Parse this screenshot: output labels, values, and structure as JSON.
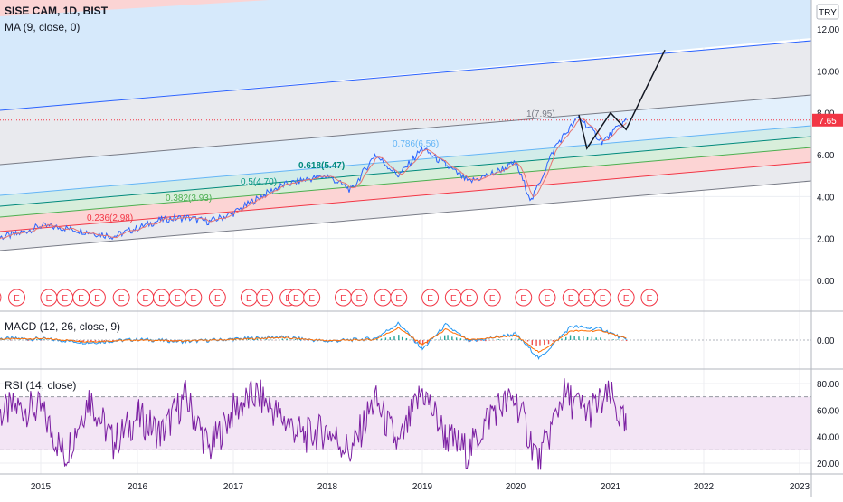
{
  "header": {
    "title": "SISE CAM, 1D, BIST",
    "indicator": "MA (9, close, 0)",
    "currency": "TRY",
    "last_price": "7.65"
  },
  "macd": {
    "title": "MACD (12, 26, close, 9)"
  },
  "rsi": {
    "title": "RSI (14, close)"
  },
  "chart_data": [
    {
      "type": "line",
      "title": "SISE CAM, 1D, BIST",
      "x": [
        "2014-07",
        "2014-10",
        "2015-01",
        "2015-04",
        "2015-07",
        "2015-10",
        "2016-01",
        "2016-04",
        "2016-07",
        "2016-10",
        "2017-01",
        "2017-04",
        "2017-07",
        "2017-10",
        "2018-01",
        "2018-04",
        "2018-07",
        "2018-10",
        "2019-01",
        "2019-04",
        "2019-07",
        "2019-10",
        "2020-01",
        "2020-03",
        "2020-06",
        "2020-09",
        "2020-12",
        "2021-03"
      ],
      "series": [
        {
          "name": "price",
          "values": [
            2.0,
            2.2,
            2.6,
            2.5,
            2.3,
            2.1,
            2.5,
            2.9,
            3.0,
            2.8,
            3.2,
            3.9,
            4.5,
            4.8,
            5.0,
            4.3,
            6.0,
            5.0,
            6.3,
            5.5,
            4.7,
            5.1,
            5.6,
            3.8,
            6.4,
            7.8,
            6.6,
            7.65
          ]
        }
      ],
      "ylim": [
        -1,
        13
      ],
      "yticks": [
        "12.00",
        "10.00",
        "8.00",
        "6.00",
        "4.00",
        "2.00",
        "0.00"
      ],
      "xticks": [
        "2015",
        "2016",
        "2017",
        "2018",
        "2019",
        "2020",
        "2021",
        "2022",
        "2023"
      ],
      "fib_levels": [
        {
          "label": "0.236(2.98)",
          "color": "#f23645"
        },
        {
          "label": "0.382(3.93)",
          "color": "#4caf50"
        },
        {
          "label": "0.5(4.70)",
          "color": "#089981"
        },
        {
          "label": "0.618(5.47)",
          "color": "#00897b"
        },
        {
          "label": "0.786(6.56)",
          "color": "#64b5f6"
        },
        {
          "label": "1(7.95)",
          "color": "#787b86"
        }
      ],
      "projection": [
        {
          "x": "2020-09",
          "y": 7.9
        },
        {
          "x": "2020-10",
          "y": 6.3
        },
        {
          "x": "2021-01",
          "y": 8.0
        },
        {
          "x": "2021-03",
          "y": 7.2
        },
        {
          "x": "2021-08",
          "y": 11.0
        }
      ],
      "earnings_markers": [
        "2014-07",
        "2014-10",
        "2015-02",
        "2015-04",
        "2015-06",
        "2015-08",
        "2015-11",
        "2016-02",
        "2016-04",
        "2016-06",
        "2016-08",
        "2016-11",
        "2017-03",
        "2017-05",
        "2017-08",
        "2017-09",
        "2017-11",
        "2018-03",
        "2018-05",
        "2018-08",
        "2018-10",
        "2019-02",
        "2019-05",
        "2019-07",
        "2019-10",
        "2020-02",
        "2020-05",
        "2020-08",
        "2020-10",
        "2020-12",
        "2021-03",
        "2021-06"
      ]
    },
    {
      "type": "line",
      "title": "MACD (12, 26, close, 9)",
      "x": [
        "2014-07",
        "2015-01",
        "2015-07",
        "2016-01",
        "2016-07",
        "2017-01",
        "2017-07",
        "2018-01",
        "2018-07",
        "2018-10",
        "2019-01",
        "2019-04",
        "2019-07",
        "2020-01",
        "2020-04",
        "2020-08",
        "2020-12",
        "2021-03"
      ],
      "series": [
        {
          "name": "macd",
          "values": [
            0.05,
            0.04,
            -0.08,
            0.02,
            -0.05,
            0.03,
            0.1,
            -0.04,
            0.05,
            0.55,
            -0.3,
            0.5,
            -0.05,
            0.2,
            -0.6,
            0.45,
            0.35,
            0.0
          ]
        },
        {
          "name": "signal",
          "values": [
            0.03,
            0.05,
            -0.05,
            0.0,
            -0.03,
            0.02,
            0.08,
            -0.02,
            0.02,
            0.4,
            -0.15,
            0.35,
            0.0,
            0.15,
            -0.4,
            0.3,
            0.3,
            0.05
          ]
        }
      ],
      "ylim": [
        -0.9,
        0.9
      ],
      "yticks": [
        "0.00"
      ]
    },
    {
      "type": "line",
      "title": "RSI (14, close)",
      "x": [
        "2014-07",
        "2014-10",
        "2015-01",
        "2015-04",
        "2015-07",
        "2015-10",
        "2016-01",
        "2016-04",
        "2016-07",
        "2016-10",
        "2017-01",
        "2017-04",
        "2017-07",
        "2017-10",
        "2018-01",
        "2018-04",
        "2018-07",
        "2018-10",
        "2019-01",
        "2019-04",
        "2019-07",
        "2019-10",
        "2020-01",
        "2020-04",
        "2020-07",
        "2020-10",
        "2021-01",
        "2021-03"
      ],
      "series": [
        {
          "name": "rsi",
          "values": [
            55,
            62,
            60,
            25,
            70,
            35,
            55,
            42,
            70,
            30,
            60,
            72,
            55,
            40,
            45,
            28,
            68,
            32,
            75,
            40,
            28,
            60,
            68,
            20,
            72,
            58,
            70,
            45
          ]
        }
      ],
      "ylim": [
        10,
        90
      ],
      "yticks": [
        "80.00",
        "60.00",
        "40.00",
        "20.00"
      ],
      "bands": [
        30,
        70
      ]
    }
  ]
}
